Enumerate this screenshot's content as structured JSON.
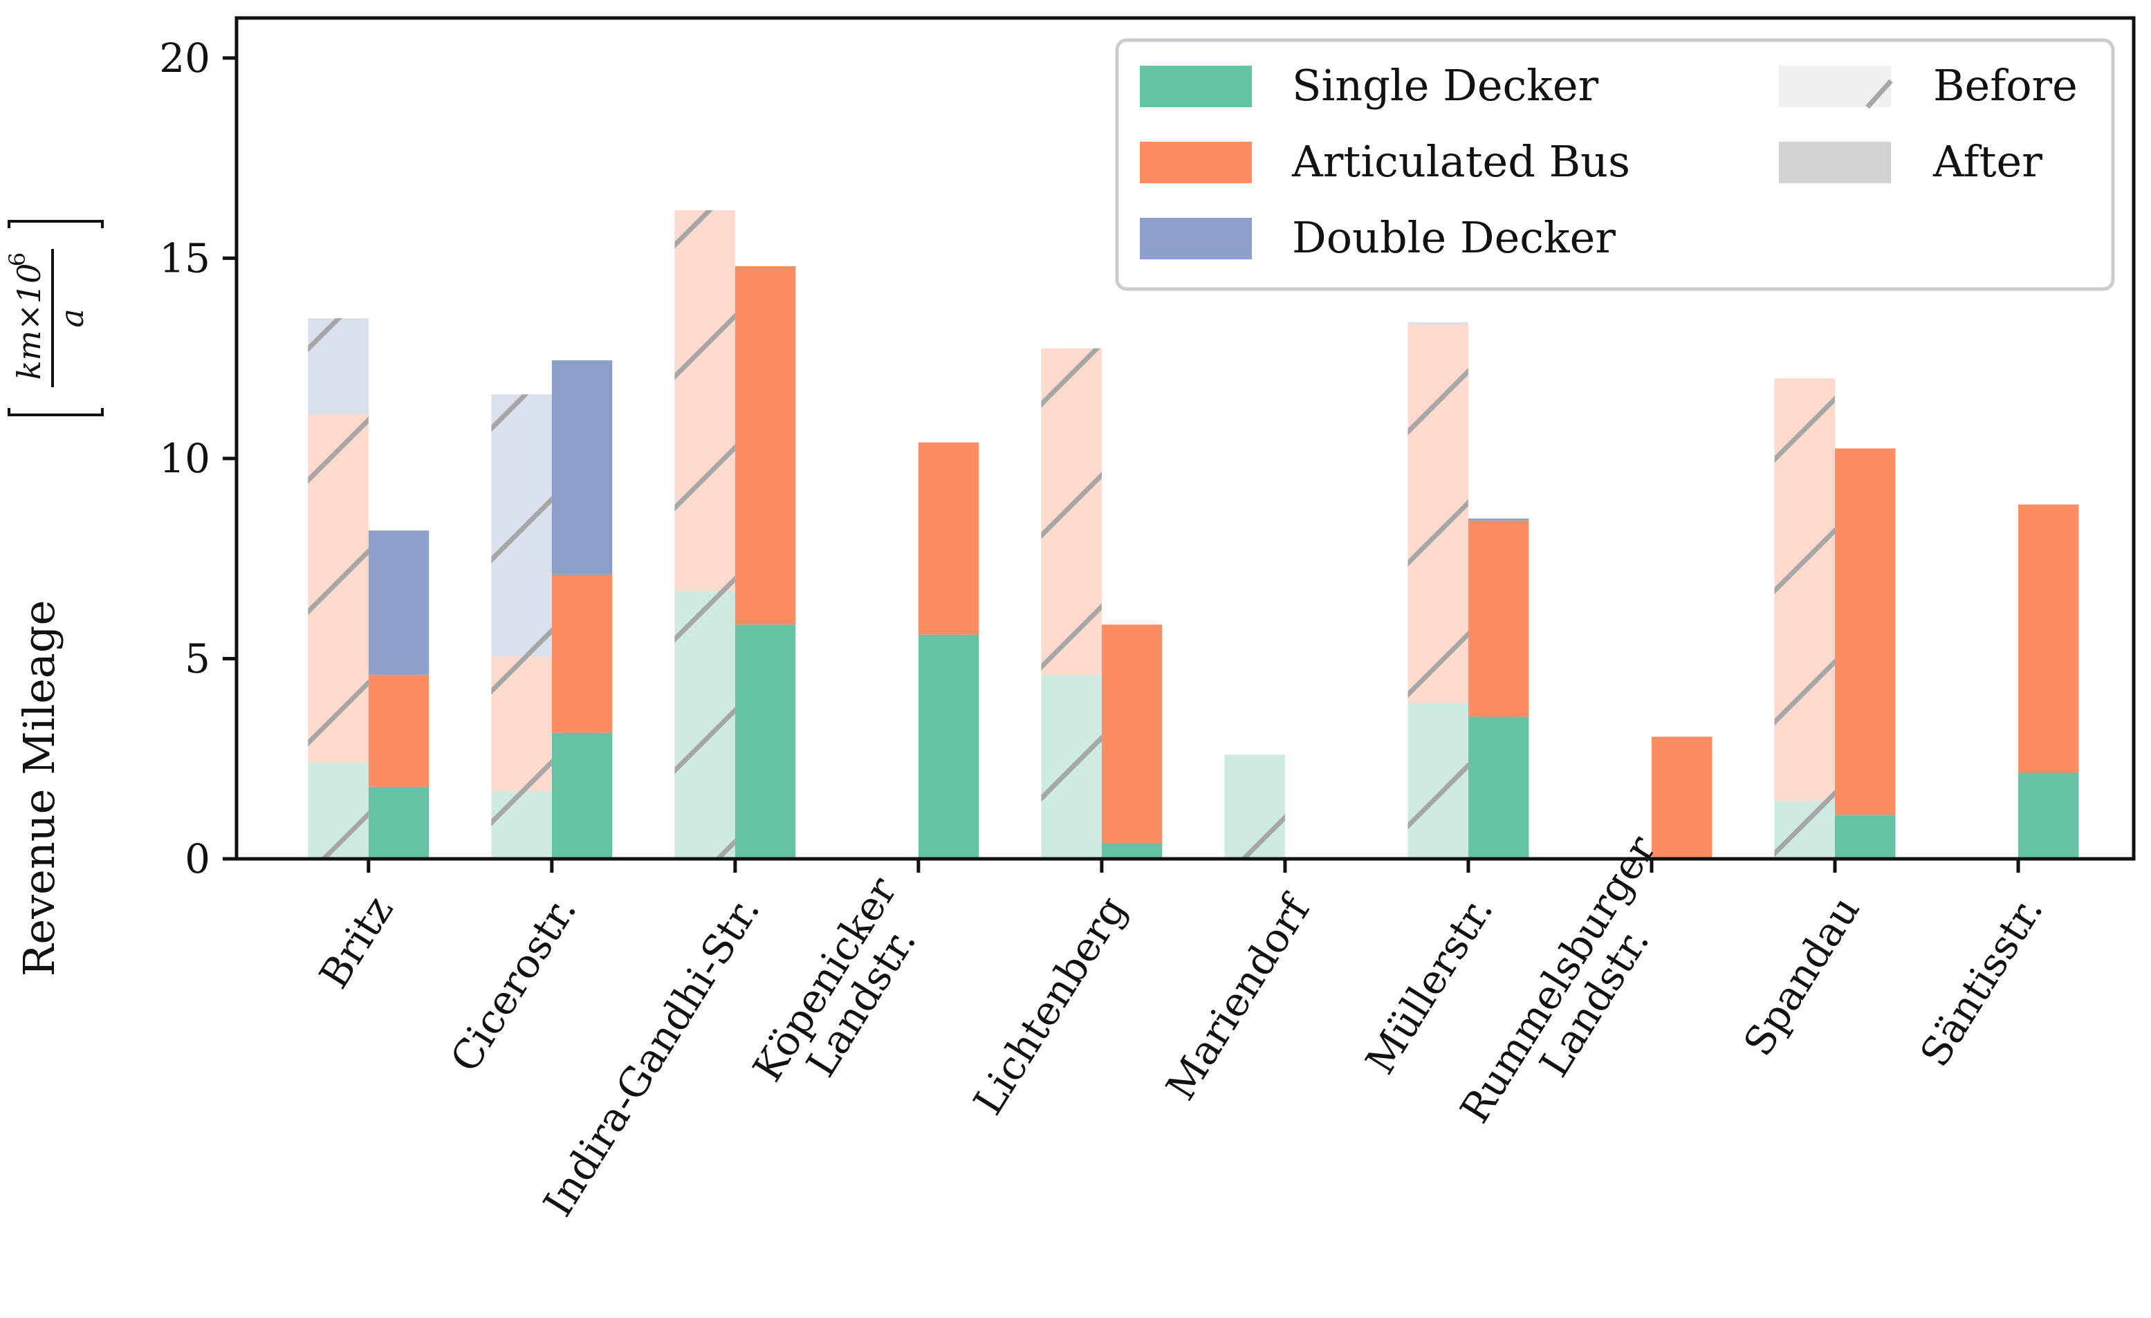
{
  "chart_data": {
    "type": "bar",
    "stacked": true,
    "grouped": true,
    "title": "",
    "xlabel": "",
    "ylabel": "Revenue Mileage",
    "ylabel_unit": {
      "numerator": "km×10",
      "exponent": "6",
      "denominator": "a"
    },
    "ylim": [
      0,
      21
    ],
    "yticks": [
      0,
      5,
      10,
      15,
      20
    ],
    "categories": [
      [
        "Britz"
      ],
      [
        "Cicerostr."
      ],
      [
        "Indira-Gandhi-Str."
      ],
      [
        "Köpenicker",
        "Landstr."
      ],
      [
        "Lichtenberg"
      ],
      [
        "Mariendorf"
      ],
      [
        "Müllerstr."
      ],
      [
        "Rummelsburger",
        "Landstr."
      ],
      [
        "Spandau"
      ],
      [
        "Säntisstr."
      ]
    ],
    "groups": [
      "Before",
      "After"
    ],
    "series": [
      {
        "name": "Single Decker",
        "color": "#66c2a5",
        "before": [
          2.4,
          1.7,
          6.7,
          0,
          4.6,
          2.6,
          3.9,
          0,
          1.45,
          0
        ],
        "after": [
          1.8,
          3.15,
          5.85,
          5.6,
          0.4,
          0,
          3.55,
          0,
          1.1,
          2.15
        ]
      },
      {
        "name": "Articulated Bus",
        "color": "#fc8d62",
        "before": [
          8.7,
          3.35,
          9.5,
          0,
          8.15,
          0,
          9.45,
          0,
          10.55,
          0
        ],
        "after": [
          2.8,
          3.95,
          8.95,
          4.8,
          5.45,
          0,
          4.9,
          3.05,
          9.15,
          6.7
        ]
      },
      {
        "name": "Double Decker",
        "color": "#8da0cb",
        "before": [
          2.4,
          6.55,
          0,
          0,
          0,
          0,
          0.05,
          0,
          0,
          0
        ],
        "after": [
          3.6,
          5.35,
          0,
          0,
          0,
          0,
          0.05,
          0,
          0,
          0
        ]
      }
    ],
    "legend": {
      "position": "top-right",
      "series_entries": [
        "Single Decker",
        "Articulated Bus",
        "Double Decker"
      ],
      "state_entries": [
        "Before",
        "After"
      ]
    }
  }
}
